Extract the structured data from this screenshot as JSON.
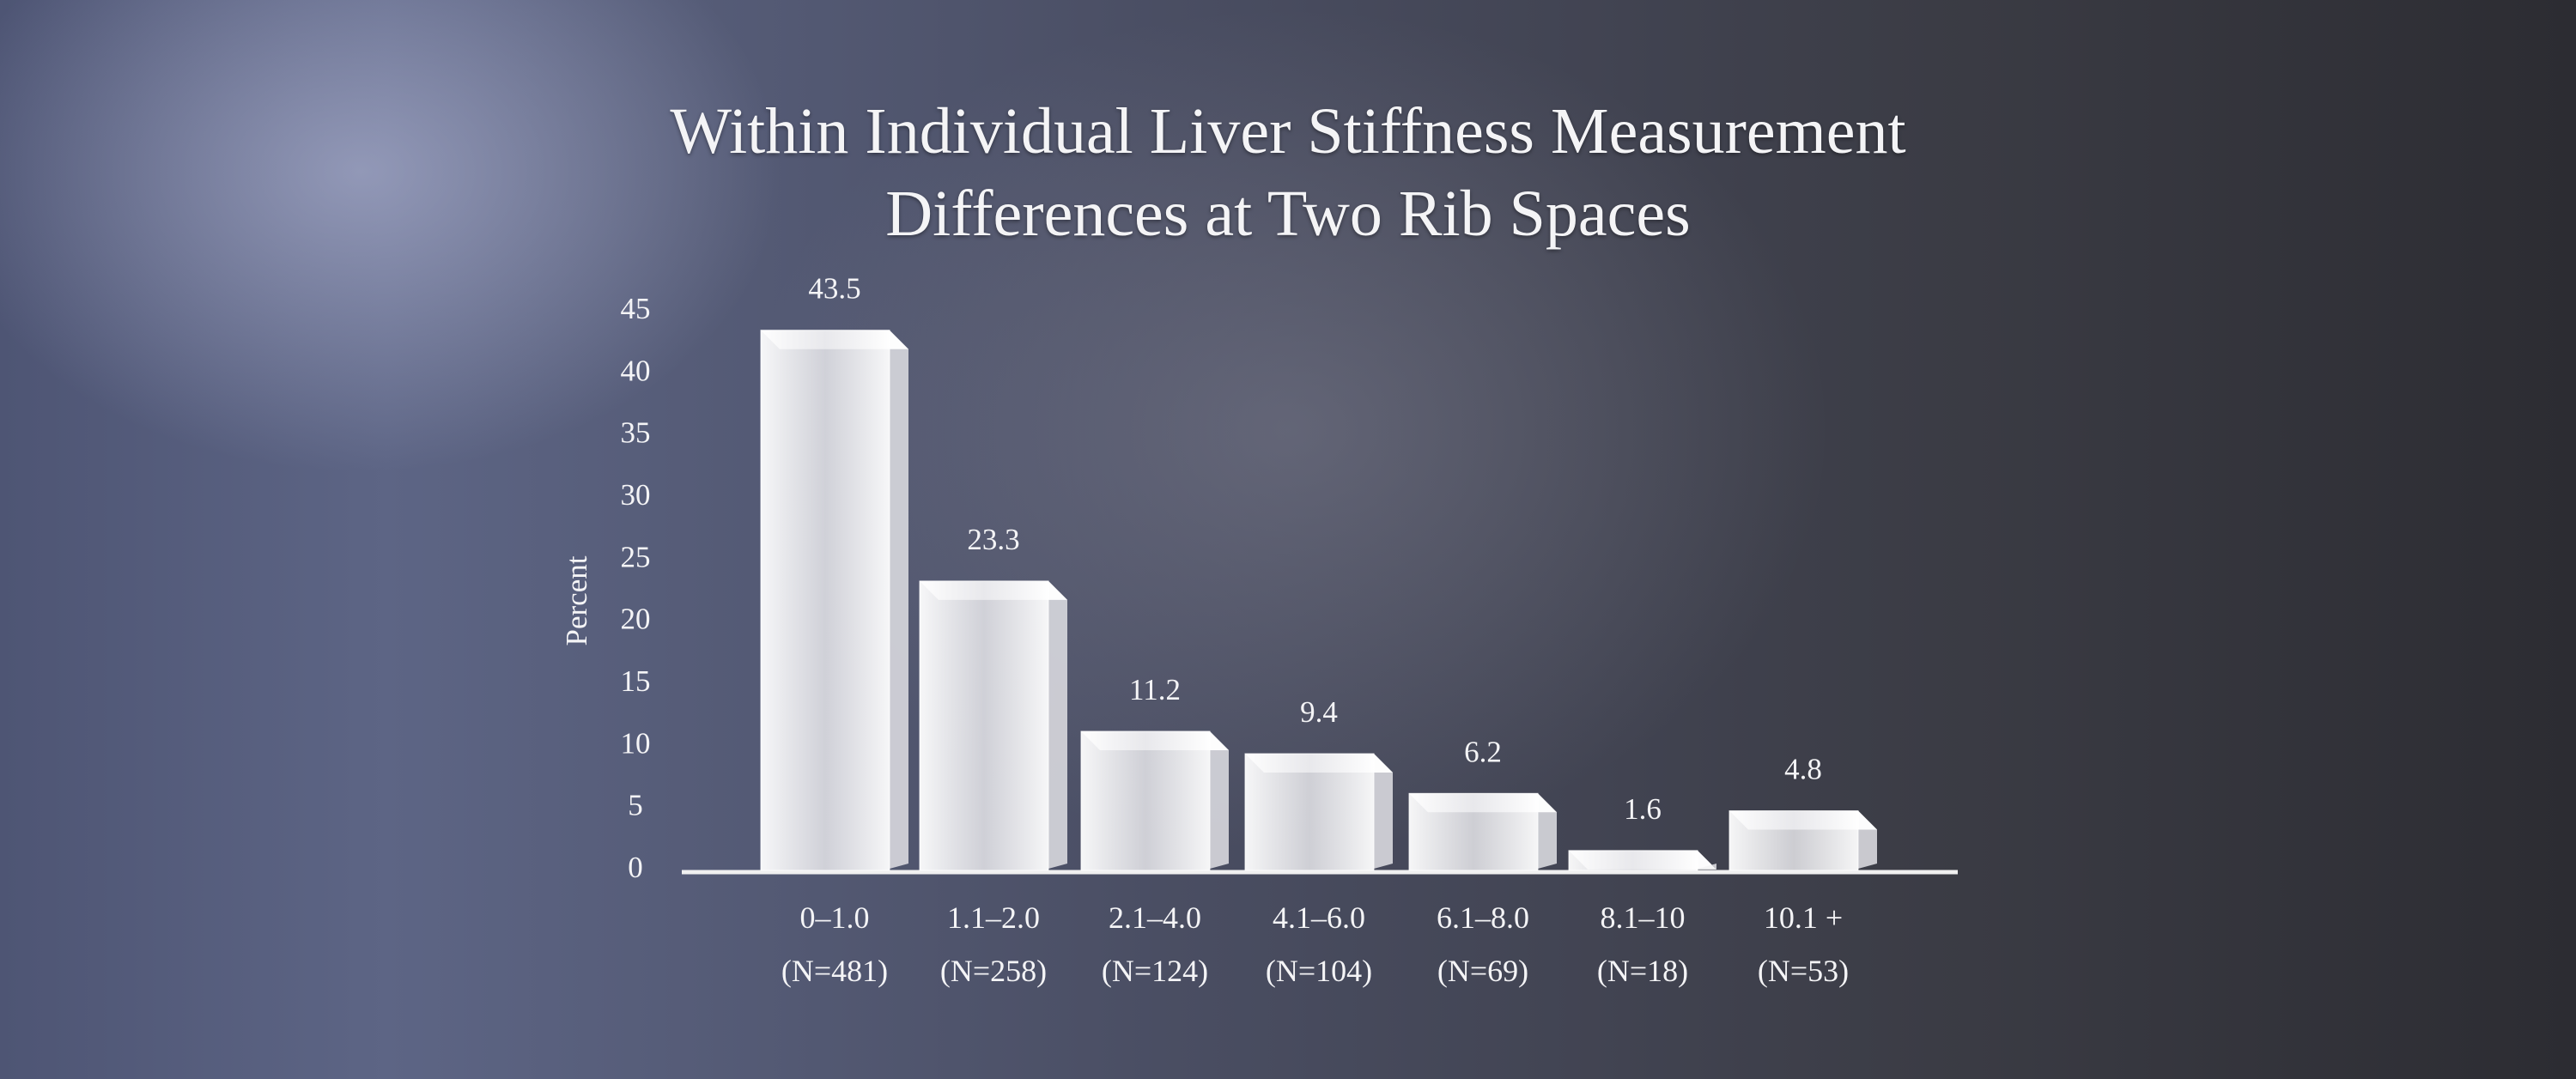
{
  "chart_data": {
    "type": "bar",
    "title": "Within Individual Liver Stiffness Measurement Differences at Two Rib Spaces",
    "y_label": "Percent",
    "categories": [
      "0–1.0\n(N=481)",
      "1.1–2.0\n(N=258)",
      "2.1–4.0\n(N=124)",
      "4.1–6.0\n(N=104)",
      "6.1–8.0\n(N=69)",
      "8.1–10\n(N=18)",
      "10.1 +\n(N=53)"
    ],
    "values": [
      43.5,
      23.3,
      11.2,
      9.4,
      6.2,
      1.6,
      4.8
    ],
    "color": "#f2f2f4",
    "ylim": [
      0,
      45
    ],
    "yticks": [
      0,
      5,
      10,
      15,
      20,
      25,
      30,
      35,
      40,
      45
    ],
    "grid": false
  }
}
